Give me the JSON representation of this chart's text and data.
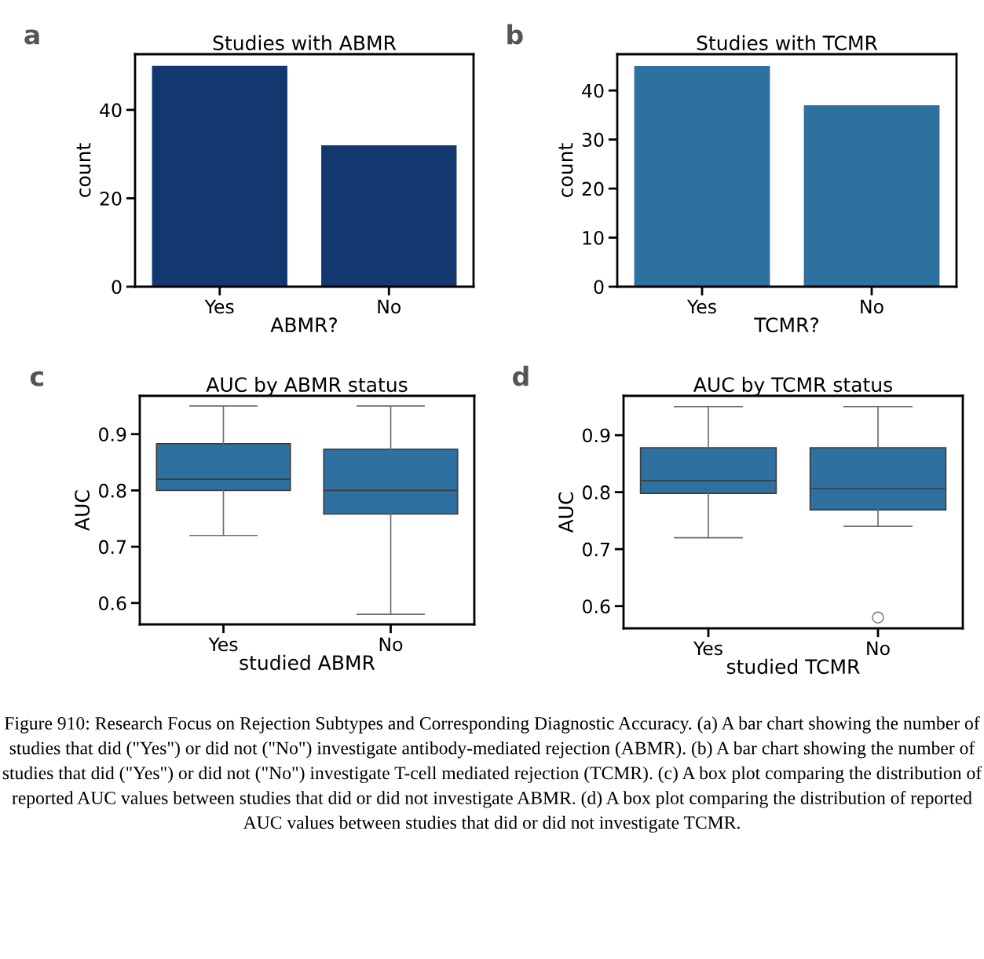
{
  "chart_data": [
    {
      "type": "bar",
      "title": "Studies with ABMR",
      "xlabel": "ABMR?",
      "ylabel": "count",
      "categories": [
        "Yes",
        "No"
      ],
      "values": [
        50,
        32
      ],
      "color": "#12386f",
      "ylim": [
        0,
        52.6
      ],
      "yticks": [
        0,
        20,
        40
      ],
      "grid": false,
      "annotations": [
        "a"
      ]
    },
    {
      "type": "bar",
      "title": "Studies with TCMR",
      "xlabel": "TCMR?",
      "ylabel": "count",
      "categories": [
        "Yes",
        "No"
      ],
      "values": [
        45,
        37
      ],
      "color": "#2e71a0",
      "ylim": [
        0,
        47.4
      ],
      "yticks": [
        0,
        10,
        20,
        30,
        40
      ],
      "grid": false,
      "annotations": [
        "b"
      ]
    },
    {
      "type": "box",
      "title": "AUC by ABMR status",
      "xlabel": "studied ABMR",
      "ylabel": "AUC",
      "categories": [
        "Yes",
        "No"
      ],
      "color": "#2e71a0",
      "boxes": [
        {
          "low": 0.72,
          "q1": 0.8,
          "median": 0.82,
          "q3": 0.883,
          "high": 0.95
        },
        {
          "low": 0.58,
          "q1": 0.758,
          "median": 0.8,
          "q3": 0.873,
          "high": 0.95
        }
      ],
      "ylim": [
        0.562,
        0.968
      ],
      "yticks": [
        0.6,
        0.7,
        0.8,
        0.9
      ],
      "grid": false,
      "annotations": [
        "c"
      ]
    },
    {
      "type": "box",
      "title": "AUC by TCMR status",
      "xlabel": "studied TCMR",
      "ylabel": "AUC",
      "categories": [
        "Yes",
        "No"
      ],
      "color": "#2e71a0",
      "boxes": [
        {
          "low": 0.72,
          "q1": 0.798,
          "median": 0.82,
          "q3": 0.878,
          "high": 0.95
        },
        {
          "low": 0.74,
          "q1": 0.769,
          "median": 0.806,
          "q3": 0.878,
          "high": 0.95,
          "outliers": [
            0.58
          ]
        }
      ],
      "ylim": [
        0.561,
        0.969
      ],
      "yticks": [
        0.6,
        0.7,
        0.8,
        0.9
      ],
      "grid": false,
      "annotations": [
        "d",
        "Figure 910: Research Focus on Rejection Subtypes and Corresponding Diagnostic Accuracy. (a) A bar chart showing the number of studies that did (\"Yes\") or did not (\"No\") investigate antibody-mediated rejection (ABMR). (b) A bar chart showing the number of studies that did (\"Yes\") or did not (\"No\") investigate T-cell mediated rejection (TCMR). (c) A box plot comparing the distribution of reported AUC values between studies that did or did not investigate ABMR. (d) A box plot comparing the distribution of reported AUC values between studies that did or did not investigate TCMR."
      ]
    }
  ]
}
